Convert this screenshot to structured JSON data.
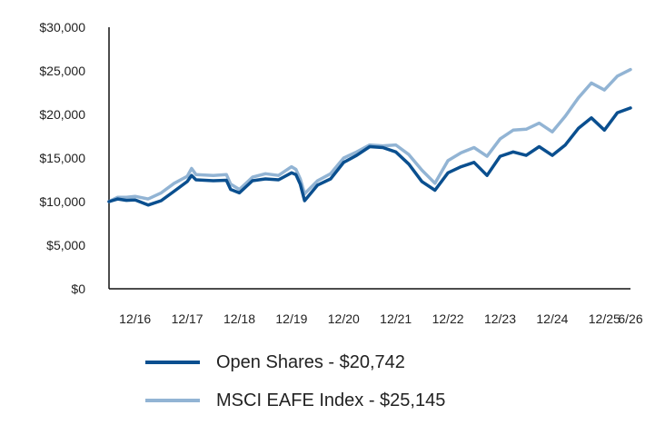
{
  "chart_data": {
    "type": "line",
    "title": "",
    "xlabel": "",
    "ylabel": "",
    "ylim": [
      0,
      30000
    ],
    "y_ticks": [
      0,
      5000,
      10000,
      15000,
      20000,
      25000,
      30000
    ],
    "y_tick_labels": [
      "$0",
      "$5,000",
      "$10,000",
      "$15,000",
      "$20,000",
      "$25,000",
      "$30,000"
    ],
    "x_range": [
      "2016-06",
      "2026-06"
    ],
    "x_ticks": [
      "2016-12",
      "2017-12",
      "2018-12",
      "2019-12",
      "2020-12",
      "2021-12",
      "2022-12",
      "2023-12",
      "2024-12",
      "2025-12",
      "2026-06"
    ],
    "x_tick_labels": [
      "12/16",
      "12/17",
      "12/18",
      "12/19",
      "12/20",
      "12/21",
      "12/22",
      "12/23",
      "12/24",
      "12/25",
      "6/26"
    ],
    "grid": false,
    "legend_position": "bottom-left",
    "series": [
      {
        "name": "Open Shares - $20,742",
        "color": "#0a4f8f",
        "points": [
          [
            "2016-06",
            10000
          ],
          [
            "2016-08",
            10300
          ],
          [
            "2016-10",
            10150
          ],
          [
            "2016-12",
            10200
          ],
          [
            "2017-03",
            9600
          ],
          [
            "2017-06",
            10100
          ],
          [
            "2017-09",
            11200
          ],
          [
            "2017-12",
            12300
          ],
          [
            "2018-01",
            13000
          ],
          [
            "2018-02",
            12500
          ],
          [
            "2018-06",
            12400
          ],
          [
            "2018-09",
            12450
          ],
          [
            "2018-10",
            11400
          ],
          [
            "2018-12",
            11000
          ],
          [
            "2019-03",
            12400
          ],
          [
            "2019-06",
            12600
          ],
          [
            "2019-09",
            12500
          ],
          [
            "2019-12",
            13300
          ],
          [
            "2020-01",
            13100
          ],
          [
            "2020-02",
            12000
          ],
          [
            "2020-03",
            10100
          ],
          [
            "2020-06",
            11900
          ],
          [
            "2020-09",
            12600
          ],
          [
            "2020-12",
            14500
          ],
          [
            "2021-03",
            15300
          ],
          [
            "2021-06",
            16300
          ],
          [
            "2021-09",
            16200
          ],
          [
            "2021-12",
            15700
          ],
          [
            "2022-03",
            14300
          ],
          [
            "2022-06",
            12300
          ],
          [
            "2022-09",
            11300
          ],
          [
            "2022-12",
            13300
          ],
          [
            "2023-03",
            14000
          ],
          [
            "2023-06",
            14500
          ],
          [
            "2023-09",
            13000
          ],
          [
            "2023-12",
            15200
          ],
          [
            "2024-03",
            15700
          ],
          [
            "2024-06",
            15300
          ],
          [
            "2024-09",
            16300
          ],
          [
            "2024-12",
            15300
          ],
          [
            "2025-03",
            16500
          ],
          [
            "2025-06",
            18400
          ],
          [
            "2025-09",
            19600
          ],
          [
            "2025-12",
            18200
          ],
          [
            "2026-03",
            20200
          ],
          [
            "2026-06",
            20742
          ]
        ]
      },
      {
        "name": "MSCI EAFE Index - $25,145",
        "color": "#92b4d4",
        "points": [
          [
            "2016-06",
            10000
          ],
          [
            "2016-08",
            10500
          ],
          [
            "2016-10",
            10500
          ],
          [
            "2016-12",
            10600
          ],
          [
            "2017-03",
            10300
          ],
          [
            "2017-06",
            11000
          ],
          [
            "2017-09",
            12100
          ],
          [
            "2017-12",
            12900
          ],
          [
            "2018-01",
            13800
          ],
          [
            "2018-02",
            13100
          ],
          [
            "2018-06",
            13000
          ],
          [
            "2018-09",
            13100
          ],
          [
            "2018-10",
            12000
          ],
          [
            "2018-12",
            11400
          ],
          [
            "2019-03",
            12800
          ],
          [
            "2019-06",
            13200
          ],
          [
            "2019-09",
            13000
          ],
          [
            "2019-12",
            14000
          ],
          [
            "2020-01",
            13700
          ],
          [
            "2020-02",
            12600
          ],
          [
            "2020-03",
            10900
          ],
          [
            "2020-06",
            12400
          ],
          [
            "2020-09",
            13200
          ],
          [
            "2020-12",
            15000
          ],
          [
            "2021-03",
            15700
          ],
          [
            "2021-06",
            16500
          ],
          [
            "2021-09",
            16400
          ],
          [
            "2021-12",
            16500
          ],
          [
            "2022-03",
            15400
          ],
          [
            "2022-06",
            13600
          ],
          [
            "2022-09",
            12100
          ],
          [
            "2022-12",
            14700
          ],
          [
            "2023-03",
            15600
          ],
          [
            "2023-06",
            16200
          ],
          [
            "2023-09",
            15200
          ],
          [
            "2023-12",
            17200
          ],
          [
            "2024-03",
            18200
          ],
          [
            "2024-06",
            18300
          ],
          [
            "2024-09",
            19000
          ],
          [
            "2024-12",
            18000
          ],
          [
            "2025-03",
            19800
          ],
          [
            "2025-06",
            21900
          ],
          [
            "2025-09",
            23600
          ],
          [
            "2025-12",
            22800
          ],
          [
            "2026-03",
            24400
          ],
          [
            "2026-06",
            25145
          ]
        ]
      }
    ]
  },
  "legend": [
    {
      "label": "Open Shares - $20,742",
      "color": "#0a4f8f"
    },
    {
      "label": "MSCI EAFE Index - $25,145",
      "color": "#92b4d4"
    }
  ]
}
